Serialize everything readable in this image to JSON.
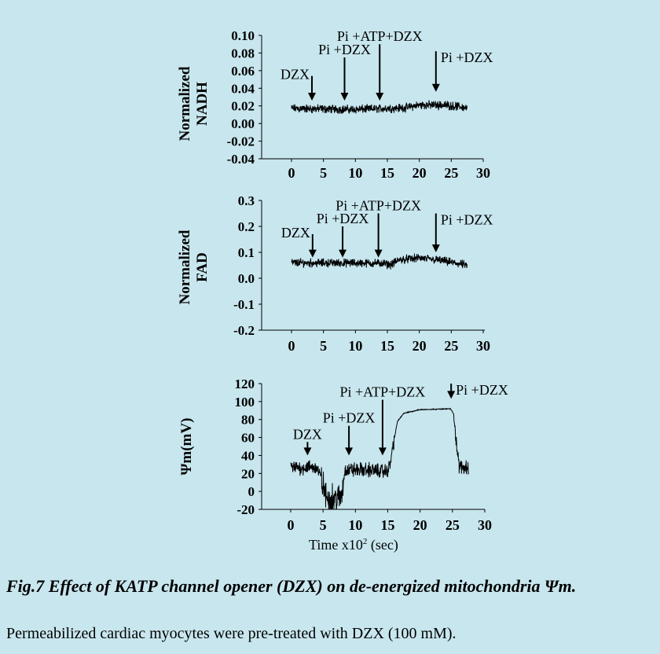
{
  "background_color": "#c8e6ee",
  "chart_data": [
    {
      "type": "line",
      "ylabel_line1": "Normalized",
      "ylabel_line2": "NADH",
      "xlabel": "",
      "xlim": [
        -4.5,
        30
      ],
      "ylim": [
        -0.04,
        0.1
      ],
      "xticks": [
        "0",
        "5",
        "10",
        "15",
        "20",
        "25",
        "30"
      ],
      "xtick_values": [
        0,
        5,
        10,
        15,
        20,
        25,
        30
      ],
      "yticks": [
        "0.10",
        "0.08",
        "0.06",
        "0.04",
        "0.02",
        "0.00",
        "-0.02",
        "-0.04"
      ],
      "ytick_values": [
        0.1,
        0.08,
        0.06,
        0.04,
        0.02,
        0.0,
        -0.02,
        -0.04
      ],
      "trace": {
        "x": [
          0,
          10,
          18,
          20,
          24,
          27.5
        ],
        "y": [
          0.017,
          0.016,
          0.018,
          0.021,
          0.021,
          0.018
        ],
        "noise": 0.006
      },
      "annotations": [
        {
          "label": "DZX",
          "x": 3.2,
          "y_top": 0.054,
          "y_tip": 0.026,
          "side": "left"
        },
        {
          "label": "Pi +DZX",
          "x": 8.3,
          "y_top": 0.075,
          "y_tip": 0.026,
          "side": "above"
        },
        {
          "label": "Pi +ATP+DZX",
          "x": 13.8,
          "y_top": 0.09,
          "y_tip": 0.026,
          "side": "above"
        },
        {
          "label": "Pi +DZX",
          "x": 22.6,
          "y_top": 0.082,
          "y_tip": 0.036,
          "side": "right"
        }
      ]
    },
    {
      "type": "line",
      "ylabel_line1": "Normalized",
      "ylabel_line2": "FAD",
      "xlabel": "",
      "xlim": [
        -4.5,
        30
      ],
      "ylim": [
        -0.2,
        0.3
      ],
      "xticks": [
        "0",
        "5",
        "10",
        "15",
        "20",
        "25",
        "30"
      ],
      "xtick_values": [
        0,
        5,
        10,
        15,
        20,
        25,
        30
      ],
      "yticks": [
        "0.3",
        "0.2",
        "0.1",
        "0.0",
        "-0.1",
        "-0.2"
      ],
      "ytick_values": [
        0.3,
        0.2,
        0.1,
        0.0,
        -0.1,
        -0.2
      ],
      "trace": {
        "x": [
          0,
          14,
          15.5,
          17,
          20,
          23,
          27.5
        ],
        "y": [
          0.06,
          0.058,
          0.052,
          0.072,
          0.078,
          0.07,
          0.05
        ],
        "noise": 0.02
      },
      "annotations": [
        {
          "label": "DZX",
          "x": 3.3,
          "y_top": 0.17,
          "y_tip": 0.08,
          "side": "left"
        },
        {
          "label": "Pi +DZX",
          "x": 8.0,
          "y_top": 0.2,
          "y_tip": 0.08,
          "side": "above"
        },
        {
          "label": "Pi +ATP+DZX",
          "x": 13.6,
          "y_top": 0.25,
          "y_tip": 0.08,
          "side": "above"
        },
        {
          "label": "Pi +DZX",
          "x": 22.6,
          "y_top": 0.25,
          "y_tip": 0.1,
          "side": "right"
        }
      ]
    },
    {
      "type": "line",
      "ylabel_line1": "Ψm(mV)",
      "ylabel_line2": "",
      "xlabel": "Time x10",
      "xlabel_sup": "2",
      "xlabel_unit": " (sec)",
      "xlim": [
        -4.5,
        30
      ],
      "ylim": [
        -20,
        120
      ],
      "xticks": [
        "0",
        "5",
        "10",
        "15",
        "20",
        "25",
        "30"
      ],
      "xtick_values": [
        0,
        5,
        10,
        15,
        20,
        25,
        30
      ],
      "yticks": [
        "120",
        "100",
        "80",
        "60",
        "40",
        "20",
        "0",
        "-20"
      ],
      "ytick_values": [
        120,
        100,
        80,
        60,
        40,
        20,
        0,
        -20
      ],
      "trace": {
        "x": [
          0,
          4,
          4.7,
          5.5,
          7.8,
          8.4,
          12,
          14.8,
          15.3,
          15.8,
          16.5,
          17.5,
          20,
          24.7,
          25.2,
          25.6,
          26,
          27.5
        ],
        "y": [
          26,
          27,
          15,
          -8,
          -8,
          24,
          24,
          22,
          28,
          50,
          78,
          87,
          91,
          92,
          86,
          55,
          28,
          27
        ],
        "noise": 10
      },
      "annotations": [
        {
          "label": "DZX",
          "x": 2.6,
          "y_top": 55,
          "y_tip": 40,
          "side": "above"
        },
        {
          "label": "Pi +DZX",
          "x": 9.0,
          "y_top": 73,
          "y_tip": 40,
          "side": "above"
        },
        {
          "label": "Pi +ATP+DZX",
          "x": 14.2,
          "y_top": 102,
          "y_tip": 40,
          "side": "above"
        },
        {
          "label": "Pi +DZX",
          "x": 24.8,
          "y_top": 120,
          "y_tip": 103,
          "side": "right"
        }
      ]
    }
  ],
  "caption": {
    "title": "Fig.7 Effect of KATP channel opener (DZX) on de-energized mitochondria Ψm.",
    "body": "Permeabilized cardiac myocytes were pre-treated with DZX (100 mM)."
  }
}
